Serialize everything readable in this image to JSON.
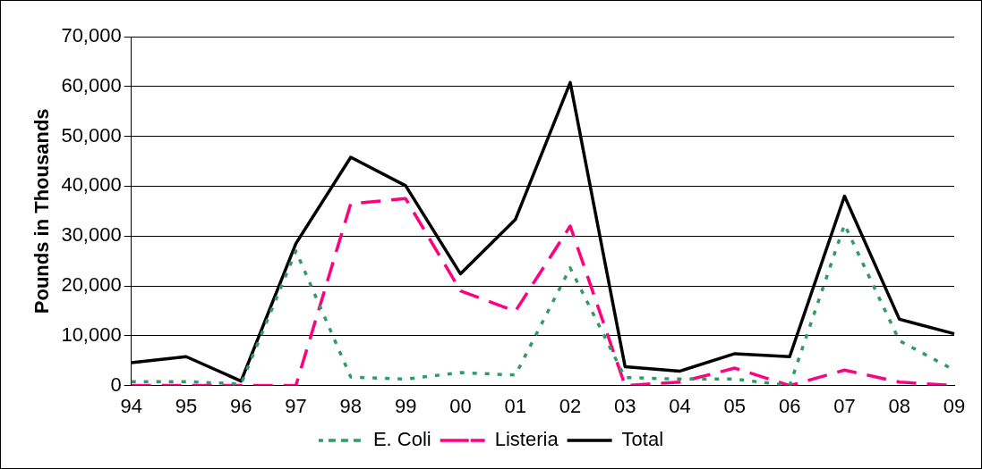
{
  "chart_data": {
    "type": "line",
    "ylabel": "Pounds in Thousands",
    "categories": [
      "94",
      "95",
      "96",
      "97",
      "98",
      "99",
      "00",
      "01",
      "02",
      "03",
      "04",
      "05",
      "06",
      "07",
      "08",
      "09"
    ],
    "series": [
      {
        "name": "E. Coli",
        "color": "#339966",
        "line_style": "dotted",
        "values": [
          800,
          800,
          300,
          27000,
          1700,
          1300,
          2600,
          2100,
          23600,
          1600,
          1300,
          1300,
          0,
          32300,
          9000,
          3100
        ]
      },
      {
        "name": "Listeria",
        "color": "#ff0080",
        "line_style": "dashed",
        "values": [
          0,
          0,
          0,
          0,
          36500,
          37500,
          19000,
          14900,
          32000,
          0,
          700,
          3500,
          0,
          3100,
          700,
          0
        ]
      },
      {
        "name": "Total",
        "color": "#000000",
        "line_style": "solid",
        "values": [
          4600,
          5800,
          900,
          28500,
          45800,
          40100,
          22400,
          33300,
          60800,
          3800,
          2900,
          6400,
          5800,
          38000,
          13300,
          10400
        ]
      }
    ],
    "ylim": [
      0,
      70000
    ],
    "yticks": [
      0,
      {
        "value": 10000,
        "label": "10,000"
      },
      {
        "value": 20000,
        "label": "20,000"
      },
      {
        "value": 30000,
        "label": "30,000"
      },
      {
        "value": 40000,
        "label": "40,000"
      },
      {
        "value": 50000,
        "label": "50,000"
      },
      {
        "value": 60000,
        "label": "60,000"
      },
      {
        "value": 70000,
        "label": "70,000"
      }
    ],
    "grid": "y",
    "legend": "bottom",
    "marker": "none"
  }
}
